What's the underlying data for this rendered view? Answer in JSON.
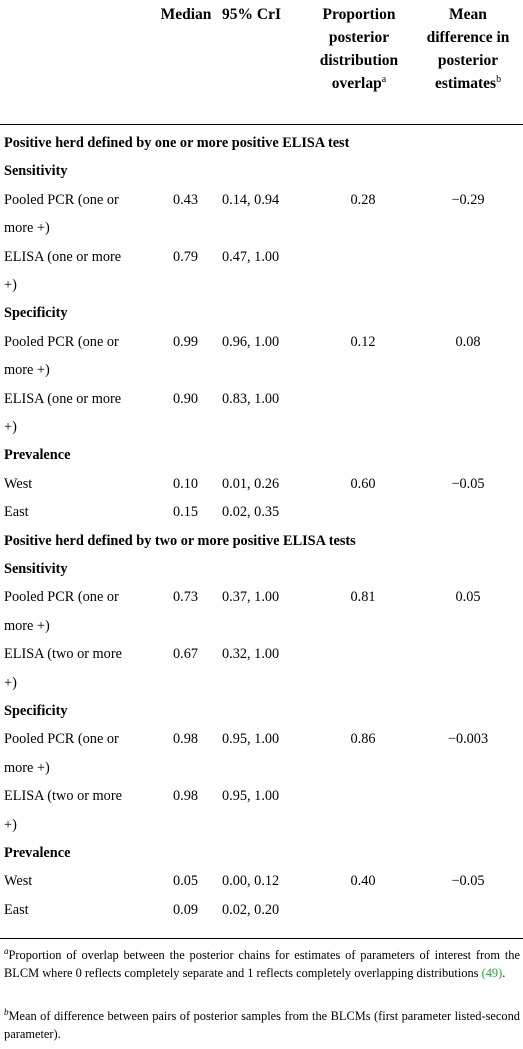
{
  "header": {
    "median": "Median",
    "cri": "95% CrI",
    "overlap_lines": [
      "Proportion",
      "posterior",
      "distribution",
      "overlap"
    ],
    "overlap_sup": "a",
    "meandiff_lines": [
      "Mean",
      "difference in",
      "posterior",
      "estimates"
    ],
    "meandiff_sup": "b"
  },
  "rows": [
    {
      "kind": "section",
      "label": "Positive herd defined by one or more positive ELISA test"
    },
    {
      "kind": "group",
      "label": "Sensitivity"
    },
    {
      "kind": "data",
      "label": "Pooled PCR (one or",
      "median": "0.43",
      "cri": "0.14, 0.94",
      "overlap": "0.28",
      "diff": "−0.29"
    },
    {
      "kind": "cont",
      "label": "more +)"
    },
    {
      "kind": "data",
      "label": "ELISA (one or more",
      "median": "0.79",
      "cri": "0.47, 1.00"
    },
    {
      "kind": "cont",
      "label": "+)"
    },
    {
      "kind": "group",
      "label": "Specificity"
    },
    {
      "kind": "data",
      "label": "Pooled PCR (one or",
      "median": "0.99",
      "cri": "0.96, 1.00",
      "overlap": "0.12",
      "diff": "0.08"
    },
    {
      "kind": "cont",
      "label": "more +)"
    },
    {
      "kind": "data",
      "label": "ELISA (one or more",
      "median": "0.90",
      "cri": "0.83, 1.00"
    },
    {
      "kind": "cont",
      "label": "+)"
    },
    {
      "kind": "group",
      "label": "Prevalence"
    },
    {
      "kind": "data",
      "label": "West",
      "median": "0.10",
      "cri": "0.01, 0.26",
      "overlap": "0.60",
      "diff": "−0.05"
    },
    {
      "kind": "data",
      "label": "East",
      "median": "0.15",
      "cri": "0.02, 0.35"
    },
    {
      "kind": "section",
      "label": "Positive herd defined by two or more positive ELISA tests"
    },
    {
      "kind": "group",
      "label": "Sensitivity"
    },
    {
      "kind": "data",
      "label": "Pooled PCR (one or",
      "median": "0.73",
      "cri": "0.37, 1.00",
      "overlap": "0.81",
      "diff": "0.05"
    },
    {
      "kind": "cont",
      "label": "more +)"
    },
    {
      "kind": "data",
      "label": "ELISA (two or more",
      "median": "0.67",
      "cri": "0.32, 1.00"
    },
    {
      "kind": "cont",
      "label": "+)"
    },
    {
      "kind": "group",
      "label": "Specificity"
    },
    {
      "kind": "data",
      "label": "Pooled PCR (one or",
      "median": "0.98",
      "cri": "0.95, 1.00",
      "overlap": "0.86",
      "diff": "−0.003"
    },
    {
      "kind": "cont",
      "label": "more +)"
    },
    {
      "kind": "data",
      "label": "ELISA (two or more",
      "median": "0.98",
      "cri": "0.95, 1.00"
    },
    {
      "kind": "cont",
      "label": "+)"
    },
    {
      "kind": "group",
      "label": "Prevalence"
    },
    {
      "kind": "data",
      "label": "West",
      "median": "0.05",
      "cri": "0.00, 0.12",
      "overlap": "0.40",
      "diff": "−0.05"
    },
    {
      "kind": "data",
      "label": "East",
      "median": "0.09",
      "cri": "0.02, 0.20"
    }
  ],
  "footnotes": {
    "a_mark": "a",
    "a_text": "Proportion of overlap between the posterior chains for estimates of parameters of interest from the BLCM where 0 reflects completely separate and 1 reflects completely overlapping distributions",
    "a_ref": "(49)",
    "a_end": ".",
    "b_mark": "b",
    "b_text": "Mean of difference between pairs of posterior samples from the BLCMs (first parameter listed-second parameter)."
  }
}
